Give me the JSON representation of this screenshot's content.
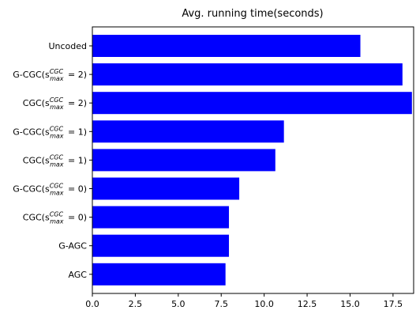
{
  "chart_data": {
    "type": "bar",
    "orientation": "horizontal",
    "title": "Avg. running time(seconds)",
    "xlabel": "",
    "ylabel": "",
    "xlim": [
      0,
      18.7
    ],
    "xticks": [
      "0.0",
      "2.5",
      "5.0",
      "7.5",
      "10.0",
      "12.5",
      "15.0",
      "17.5"
    ],
    "grid": false,
    "bar_color": "#0000ff",
    "categories": [
      {
        "prefix": "Uncoded",
        "sup": "",
        "sub": "",
        "suffix": ""
      },
      {
        "prefix": "G-CGC(s",
        "sup": "CGC",
        "sub": "max",
        "suffix": " = 2)"
      },
      {
        "prefix": "CGC(s",
        "sup": "CGC",
        "sub": "max",
        "suffix": " = 2)"
      },
      {
        "prefix": "G-CGC(s",
        "sup": "CGC",
        "sub": "max",
        "suffix": " = 1)"
      },
      {
        "prefix": "CGC(s",
        "sup": "CGC",
        "sub": "max",
        "suffix": " = 1)"
      },
      {
        "prefix": "G-CGC(s",
        "sup": "CGC",
        "sub": "max",
        "suffix": " = 0)"
      },
      {
        "prefix": "CGC(s",
        "sup": "CGC",
        "sub": "max",
        "suffix": " = 0)"
      },
      {
        "prefix": "G-AGC",
        "sup": "",
        "sub": "",
        "suffix": ""
      },
      {
        "prefix": "AGC",
        "sup": "",
        "sub": "",
        "suffix": ""
      }
    ],
    "values": [
      15.6,
      18.05,
      18.6,
      11.15,
      10.65,
      8.55,
      7.95,
      7.95,
      7.75
    ]
  }
}
